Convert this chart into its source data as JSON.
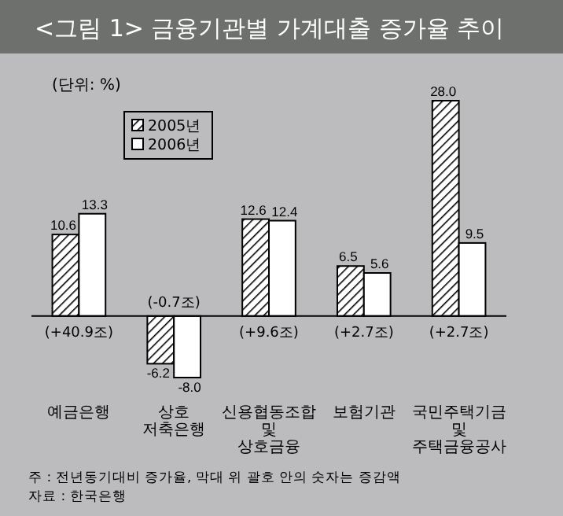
{
  "chart_data": {
    "type": "bar",
    "title": "<그림 1> 금융기관별 가계대출 증가율 추이",
    "categories": [
      "예금은행",
      "상호\n저축은행",
      "신용협동조합\n및\n상호금융",
      "보험기관",
      "국민주택기금\n및\n주택금융공사"
    ],
    "series": [
      {
        "name": "2005년",
        "color": "#000000",
        "values": [
          10.6,
          -6.2,
          12.6,
          6.5,
          28.0
        ],
        "value_labels": [
          "10.6",
          "-6.2",
          "12.6",
          "6.5",
          "28.0"
        ]
      },
      {
        "name": "2006년",
        "color": "#ffffff",
        "values": [
          13.3,
          -8.0,
          12.4,
          5.6,
          9.5
        ],
        "value_labels": [
          "13.3",
          "-8.0",
          "12.4",
          "5.6",
          "9.5"
        ]
      }
    ],
    "legend": "top left",
    "grid": false,
    "annotations": [
      "(단위: %)",
      "(+40.9조)",
      "(-0.7조)",
      "(+9.6조)",
      "(+2.7조)",
      "(+2.7조)",
      "주 : 전년동기대비 증가율, 막대 위 괄호 안의 숫자는 증감액",
      "자료 : 한국은행"
    ]
  }
}
